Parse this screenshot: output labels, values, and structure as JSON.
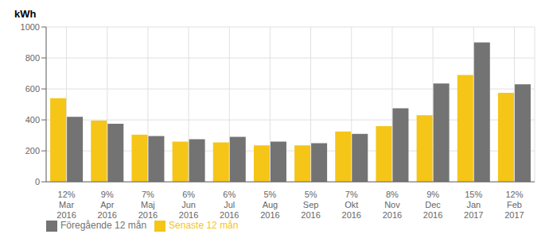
{
  "chart_data": {
    "type": "bar",
    "ylabel": "kWh",
    "categories": [
      "12%\nMar\n2016",
      "9%\nApr\n2016",
      "7%\nMaj\n2016",
      "6%\nJun\n2016",
      "6%\nJul\n2016",
      "5%\nAug\n2016",
      "5%\nSep\n2016",
      "7%\nOkt\n2016",
      "8%\nNov\n2016",
      "9%\nDec\n2016",
      "15%\nJan\n2017",
      "12%\nFeb\n2017"
    ],
    "series": [
      {
        "name": "Senaste 12 mån",
        "color": "#F5C518",
        "values": [
          540,
          395,
          305,
          260,
          255,
          235,
          235,
          325,
          360,
          430,
          690,
          575
        ]
      },
      {
        "name": "Föregående 12 mån",
        "color": "#737373",
        "values": [
          420,
          375,
          295,
          275,
          290,
          260,
          250,
          310,
          475,
          635,
          900,
          630
        ]
      }
    ],
    "ylim": [
      0,
      1000
    ],
    "yticks": [
      0,
      200,
      400,
      600,
      800,
      1000
    ],
    "grid": true,
    "legend": "lower left"
  }
}
